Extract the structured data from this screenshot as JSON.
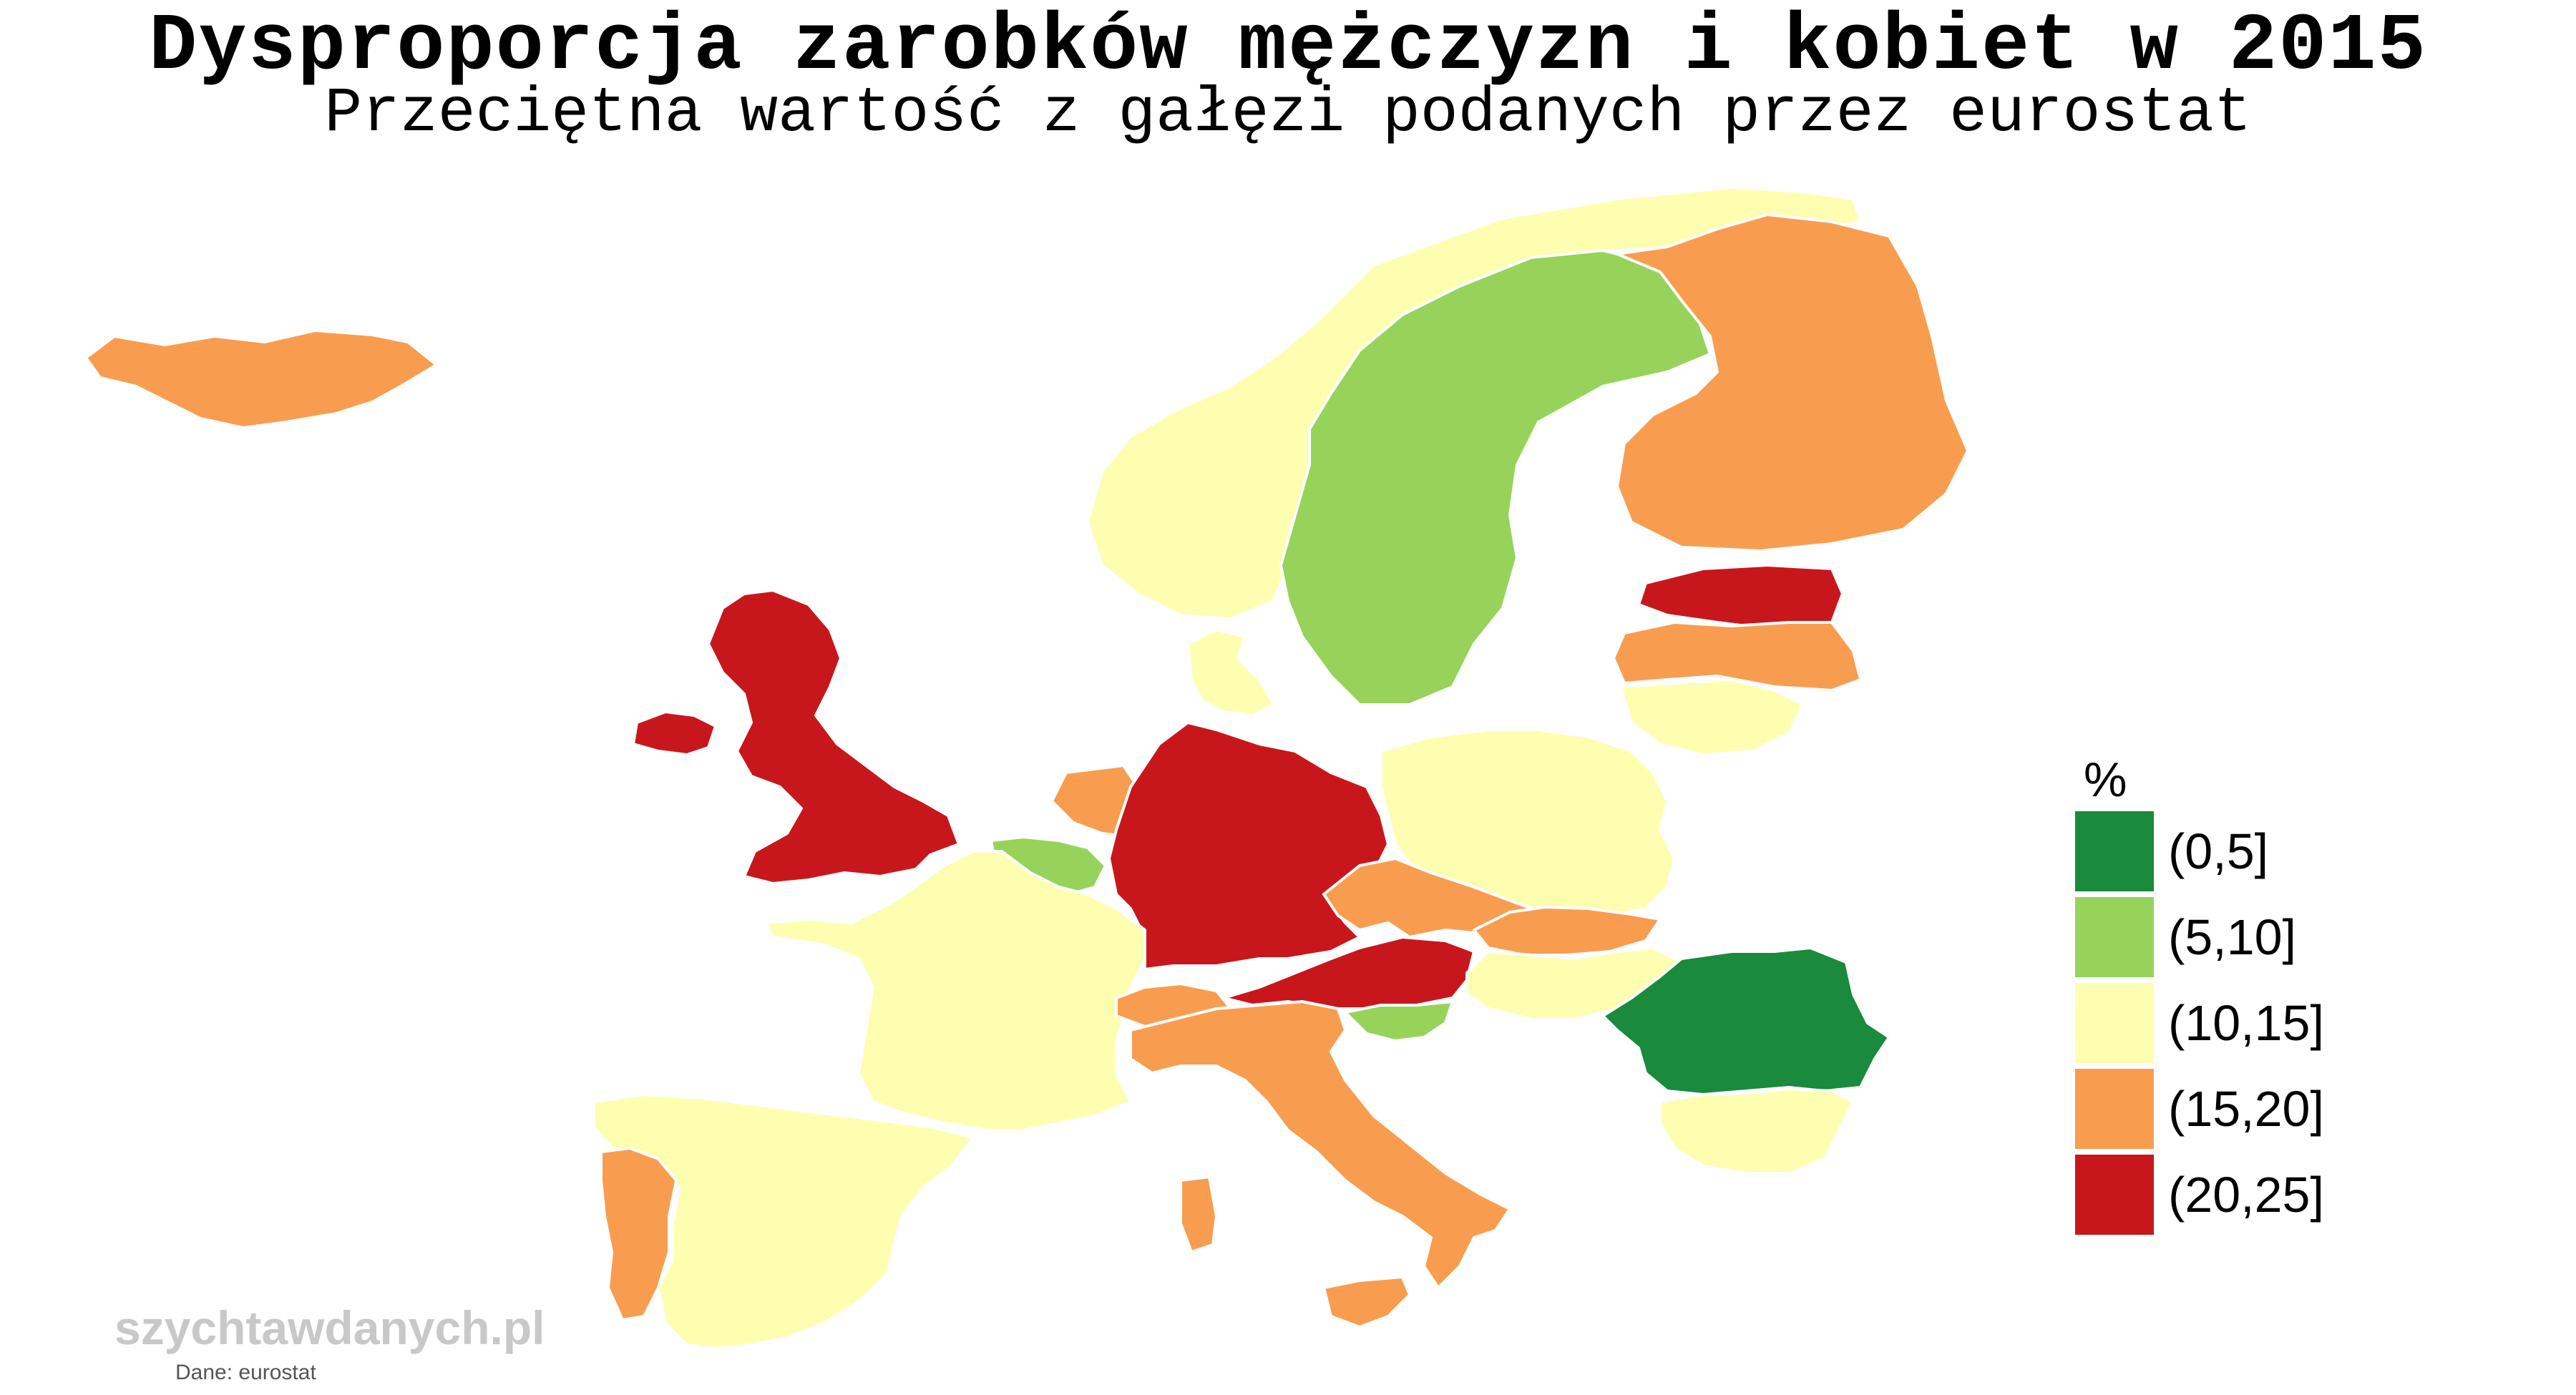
{
  "title": "Dysproporcja zarobków mężczyzn i kobiet w 2015",
  "subtitle": "Przeciętna wartość z gałęzi podanych przez eurostat",
  "legend": {
    "title": "%",
    "bins": [
      {
        "label": "(0,5]",
        "color": "#1a8a3c"
      },
      {
        "label": "(5,10]",
        "color": "#97d35b"
      },
      {
        "label": "(10,15]",
        "color": "#fefeb0"
      },
      {
        "label": "(15,20]",
        "color": "#f89d4f"
      },
      {
        "label": "(20,25]",
        "color": "#c8171c"
      }
    ]
  },
  "countries": [
    {
      "name": "Iceland",
      "bin": 3
    },
    {
      "name": "Norway",
      "bin": 2
    },
    {
      "name": "Sweden",
      "bin": 1
    },
    {
      "name": "Finland",
      "bin": 3
    },
    {
      "name": "Estonia",
      "bin": 4
    },
    {
      "name": "Latvia",
      "bin": 3
    },
    {
      "name": "Lithuania",
      "bin": 2
    },
    {
      "name": "United Kingdom",
      "bin": 4
    },
    {
      "name": "Denmark",
      "bin": 2
    },
    {
      "name": "Netherlands",
      "bin": 3
    },
    {
      "name": "Belgium",
      "bin": 1
    },
    {
      "name": "Germany",
      "bin": 4
    },
    {
      "name": "Poland",
      "bin": 2
    },
    {
      "name": "Czech Republic",
      "bin": 3
    },
    {
      "name": "Slovakia",
      "bin": 3
    },
    {
      "name": "Austria",
      "bin": 4
    },
    {
      "name": "Hungary",
      "bin": 2
    },
    {
      "name": "Slovenia",
      "bin": 1
    },
    {
      "name": "Romania",
      "bin": 0
    },
    {
      "name": "Bulgaria",
      "bin": 2
    },
    {
      "name": "France",
      "bin": 2
    },
    {
      "name": "Switzerland",
      "bin": 3
    },
    {
      "name": "Italy",
      "bin": 3
    },
    {
      "name": "Spain",
      "bin": 2
    },
    {
      "name": "Portugal",
      "bin": 3
    }
  ],
  "watermark": "szychtawdanych.pl",
  "source": "Dane: eurostat"
}
